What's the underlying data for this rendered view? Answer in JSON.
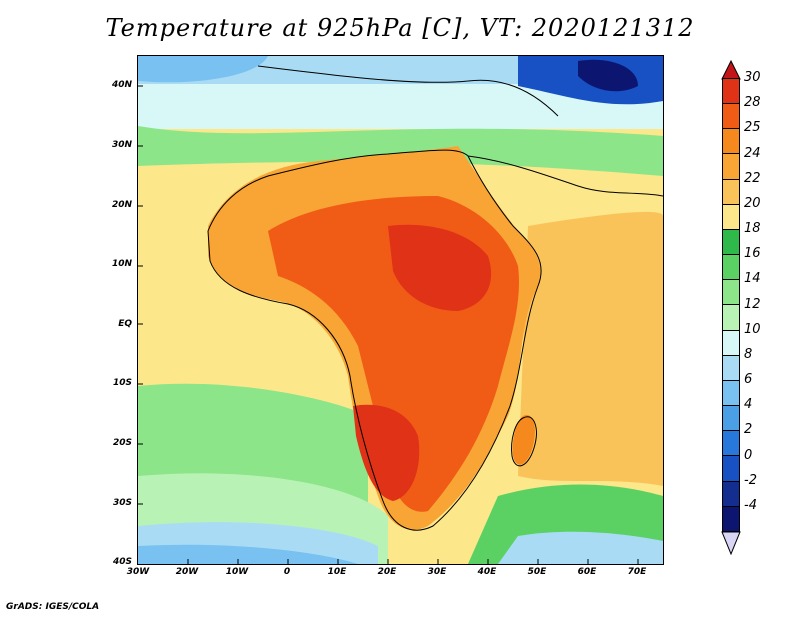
{
  "title": "Temperature at 925hPa [C], VT: 2020121312",
  "credit": "GrADS: IGES/COLA",
  "map": {
    "lat_labels": [
      "40N",
      "30N",
      "20N",
      "10N",
      "EQ",
      "10S",
      "20S",
      "30S",
      "40S"
    ],
    "lon_labels": [
      "30W",
      "20W",
      "10W",
      "0",
      "10E",
      "20E",
      "30E",
      "40E",
      "50E",
      "60E",
      "70E"
    ],
    "lon_range": [
      -30,
      75
    ],
    "lat_range": [
      -40,
      45
    ]
  },
  "colorbar": {
    "labels": [
      "30",
      "28",
      "25",
      "24",
      "22",
      "20",
      "18",
      "16",
      "14",
      "12",
      "10",
      "8",
      "6",
      "4",
      "2",
      "0",
      "-2",
      "-4"
    ],
    "colors": [
      "#e03217",
      "#f05c16",
      "#f6891d",
      "#f8a535",
      "#fac35a",
      "#fde78b",
      "#2fb94b",
      "#5bd163",
      "#8ce589",
      "#b8f3b5",
      "#d8f7f7",
      "#a9dcf4",
      "#79c1f0",
      "#4a9fe5",
      "#2877db",
      "#1751c4",
      "#132e8f",
      "#0c1670"
    ],
    "top_arrow_color": "#c1151a",
    "bottom_arrow_color": "#d9d6f5"
  }
}
